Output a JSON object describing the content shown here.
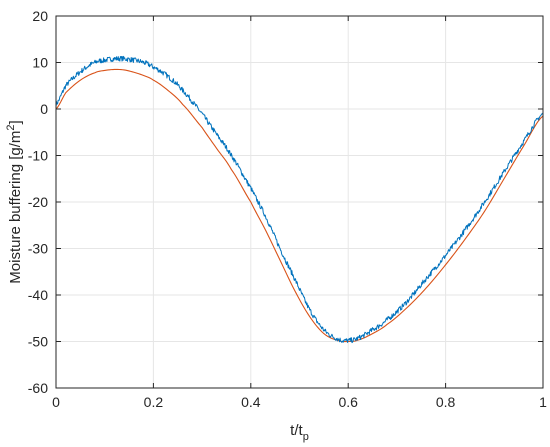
{
  "chart_data": {
    "type": "line",
    "xlabel_main": "t/t",
    "xlabel_sub": "p",
    "ylabel_main": "Moisture buffering [g/m",
    "ylabel_sup": "2",
    "ylabel_end": "]",
    "xlim": [
      0,
      1
    ],
    "ylim": [
      -60,
      20
    ],
    "xticks": [
      0,
      0.2,
      0.4,
      0.6,
      0.8,
      1
    ],
    "xtick_labels": [
      "0",
      "0.2",
      "0.4",
      "0.6",
      "0.8",
      "1"
    ],
    "yticks": [
      -60,
      -50,
      -40,
      -30,
      -20,
      -10,
      0,
      10,
      20
    ],
    "ytick_labels": [
      "-60",
      "-50",
      "-40",
      "-30",
      "-20",
      "-10",
      "0",
      "10",
      "20"
    ],
    "grid": true,
    "box": true,
    "series": [
      {
        "color": "#0072BD",
        "noisy": true,
        "x": [
          0,
          0.02,
          0.05,
          0.08,
          0.1,
          0.12,
          0.14,
          0.16,
          0.18,
          0.2,
          0.23,
          0.26,
          0.3,
          0.33,
          0.36,
          0.4,
          0.43,
          0.46,
          0.49,
          0.52,
          0.55,
          0.58,
          0.6,
          0.62,
          0.65,
          0.68,
          0.72,
          0.76,
          0.8,
          0.84,
          0.88,
          0.92,
          0.96,
          1.0
        ],
        "y": [
          1,
          5,
          8,
          10,
          10.5,
          10.8,
          10.8,
          10.5,
          10,
          9,
          7,
          4,
          -1,
          -5.5,
          -10,
          -17,
          -23,
          -30,
          -36.5,
          -43,
          -47.5,
          -49.5,
          -49.8,
          -49.3,
          -47.5,
          -45.3,
          -41.5,
          -36.5,
          -31.5,
          -26,
          -20,
          -13.5,
          -7,
          -1
        ]
      },
      {
        "color": "#D95319",
        "noisy": false,
        "x": [
          0,
          0.02,
          0.05,
          0.08,
          0.1,
          0.12,
          0.14,
          0.16,
          0.18,
          0.2,
          0.23,
          0.26,
          0.3,
          0.33,
          0.36,
          0.4,
          0.43,
          0.46,
          0.49,
          0.52,
          0.55,
          0.58,
          0.6,
          0.62,
          0.65,
          0.68,
          0.72,
          0.76,
          0.8,
          0.84,
          0.88,
          0.92,
          0.96,
          1.0
        ],
        "y": [
          0,
          3.5,
          6.2,
          7.8,
          8.3,
          8.5,
          8.4,
          7.9,
          7.2,
          6.2,
          4,
          1,
          -4,
          -8.5,
          -13,
          -20,
          -26,
          -32.5,
          -39,
          -44.5,
          -48.3,
          -49.8,
          -50,
          -49.7,
          -48.3,
          -46.3,
          -42.8,
          -38.5,
          -33.5,
          -28,
          -22,
          -15,
          -8,
          -1.5
        ]
      }
    ]
  }
}
